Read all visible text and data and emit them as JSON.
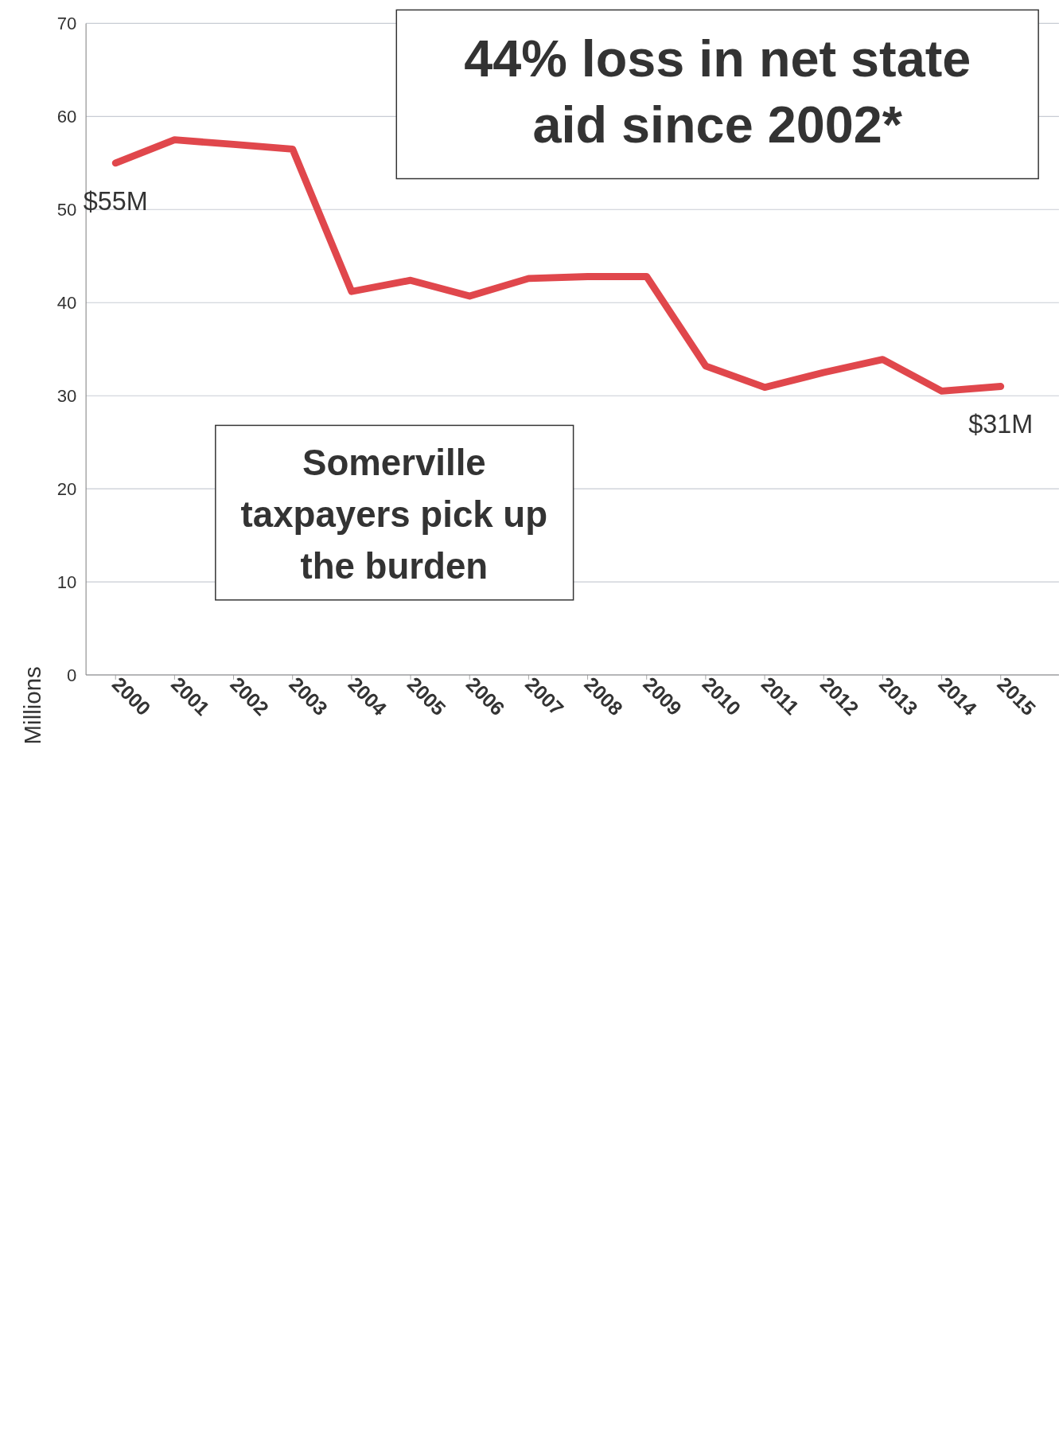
{
  "chart_data": {
    "type": "line",
    "title": "44% loss in net state aid since 2002*",
    "ylabel": "Millions",
    "categories": [
      "2000",
      "2001",
      "2002",
      "2003",
      "2004",
      "2005",
      "2006",
      "2007",
      "2008",
      "2009",
      "2010",
      "2011",
      "2012",
      "2013",
      "2014",
      "2015"
    ],
    "series": [
      {
        "color": "#e0474c",
        "values": [
          55,
          57.5,
          57,
          56.5,
          41.2,
          42.4,
          40.7,
          42.6,
          42.8,
          42.8,
          33.2,
          30.9,
          32.5,
          33.9,
          30.5,
          31
        ],
        "value_labels": [
          "$55M",
          null,
          null,
          null,
          null,
          null,
          null,
          null,
          null,
          null,
          null,
          null,
          null,
          null,
          null,
          "$31M"
        ]
      }
    ],
    "ylim": [
      0,
      70
    ],
    "yticks": [
      0,
      10,
      20,
      30,
      40,
      50,
      60,
      70
    ],
    "grid": "y",
    "marker": "none",
    "line_style": "solid",
    "annotations": [
      "Somerville taxpayers pick up the burden"
    ]
  }
}
